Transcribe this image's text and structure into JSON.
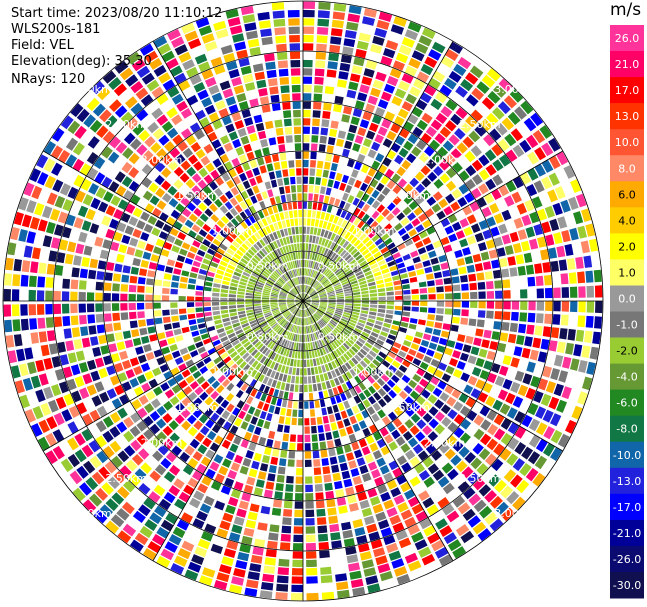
{
  "header": {
    "start_time": "Start time: 2023/08/20 11:10:12",
    "instrument": "WLS200s-181",
    "field": "Field: VEL",
    "elevation": "Elevation(deg): 35.30",
    "nrays": "NRays: 120"
  },
  "colorbar": {
    "unit": "m/s",
    "ticks": [
      "26.0",
      "21.0",
      "17.0",
      "13.0",
      "10.0",
      "8.0",
      "6.0",
      "4.0",
      "2.0",
      "1.0",
      "0.0",
      "-1.0",
      "-2.0",
      "-4.0",
      "-6.0",
      "-8.0",
      "-10.0",
      "-13.0",
      "-17.0",
      "-21.0",
      "-26.0",
      "-30.0"
    ],
    "colors": [
      "#ff3399",
      "#ff0066",
      "#ff0000",
      "#ff3300",
      "#ff5533",
      "#ff8866",
      "#ffaa00",
      "#ffcc00",
      "#ffff00",
      "#ffff66",
      "#999999",
      "#777777",
      "#99cc33",
      "#669933",
      "#228822",
      "#117744",
      "#1166aa",
      "#2222dd",
      "#0000ff",
      "#000099",
      "#0a0a70",
      "#101050"
    ]
  },
  "chart_data": {
    "type": "heatmap",
    "projection": "polar PPI",
    "nrays": 120,
    "range_labels_km": [
      "0.50km",
      "1.00km",
      "1.50km",
      "2.00km",
      "2.50km",
      "3.00km"
    ],
    "grid": true,
    "inner_region": {
      "near_zero_ranges_km": [
        0,
        1.0
      ],
      "dominant_values_ms": [
        0.0,
        -1.0,
        -2.0,
        2.0,
        1.0
      ]
    }
  }
}
